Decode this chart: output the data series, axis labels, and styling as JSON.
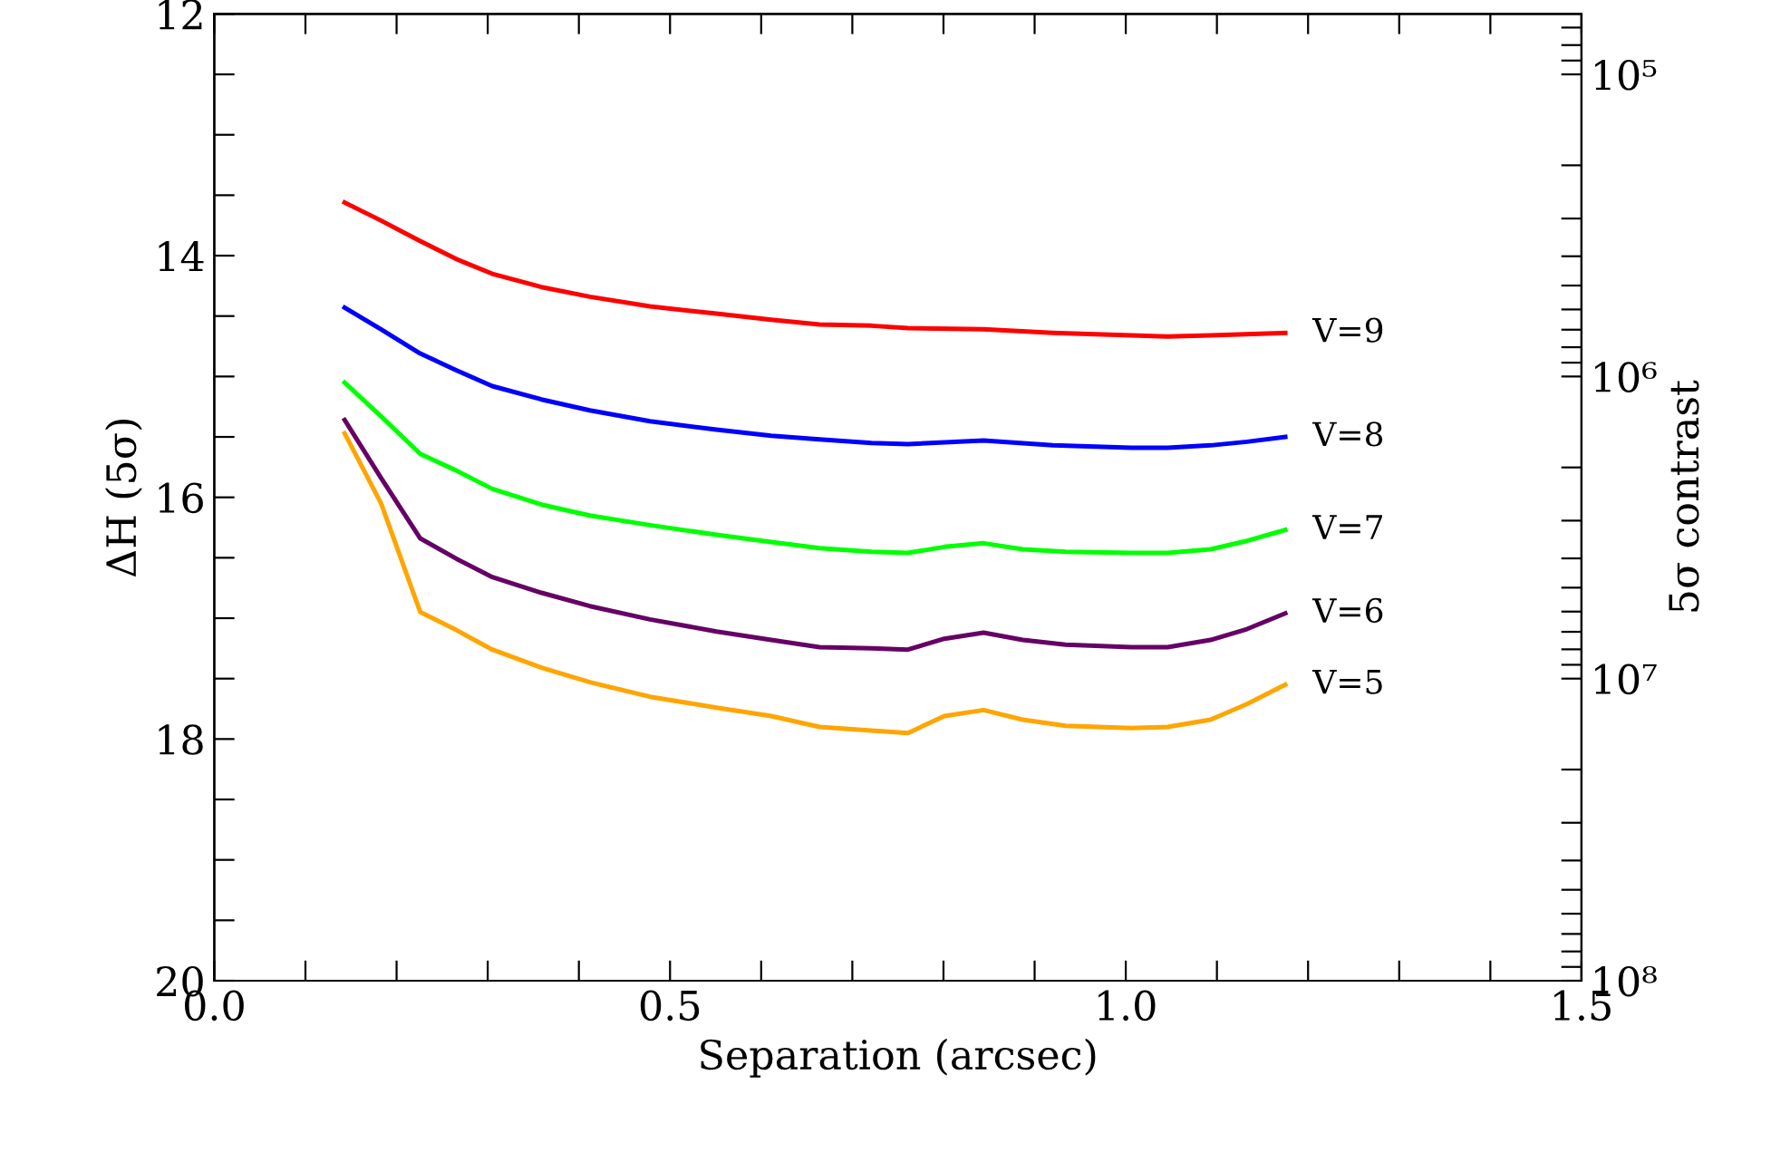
{
  "chart_data": {
    "type": "line",
    "xlabel": "Separation (arcsec)",
    "ylabel": "ΔH (5σ)",
    "y2label": "5σ contrast",
    "xlim": [
      0,
      1.5
    ],
    "ylim": [
      20,
      12
    ],
    "y2lim": [
      100000000,
      63095.7
    ],
    "xticks": [
      {
        "value": 0,
        "label": "0.0"
      },
      {
        "value": 0.1,
        "label": null
      },
      {
        "value": 0.2,
        "label": null
      },
      {
        "value": 0.3,
        "label": null
      },
      {
        "value": 0.4,
        "label": null
      },
      {
        "value": 0.5,
        "label": "0.5"
      },
      {
        "value": 0.6,
        "label": null
      },
      {
        "value": 0.7,
        "label": null
      },
      {
        "value": 0.8,
        "label": null
      },
      {
        "value": 0.9,
        "label": null
      },
      {
        "value": 1.0,
        "label": "1.0"
      },
      {
        "value": 1.1,
        "label": null
      },
      {
        "value": 1.2,
        "label": null
      },
      {
        "value": 1.3,
        "label": null
      },
      {
        "value": 1.4,
        "label": null
      },
      {
        "value": 1.5,
        "label": "1.5"
      }
    ],
    "yticks": [
      12,
      {
        "value": 12.5,
        "label": null
      },
      {
        "value": 13,
        "label": null
      },
      {
        "value": 13.5,
        "label": null
      },
      14,
      {
        "value": 14.5,
        "label": null
      },
      {
        "value": 15,
        "label": null
      },
      {
        "value": 15.5,
        "label": null
      },
      16,
      {
        "value": 16.5,
        "label": null
      },
      {
        "value": 17,
        "label": null
      },
      {
        "value": 17.5,
        "label": null
      },
      18,
      {
        "value": 18.5,
        "label": null
      },
      {
        "value": 19,
        "label": null
      },
      {
        "value": 19.5,
        "label": null
      },
      20
    ],
    "y2ticks": [
      {
        "value": 70000,
        "label": null
      },
      {
        "value": 80000,
        "label": null
      },
      {
        "value": 90000,
        "label": null
      },
      {
        "value": 100000,
        "label": "10⁵"
      },
      {
        "value": 200000,
        "label": null
      },
      {
        "value": 300000,
        "label": null
      },
      {
        "value": 400000,
        "label": null
      },
      {
        "value": 500000,
        "label": null
      },
      {
        "value": 600000,
        "label": null
      },
      {
        "value": 700000,
        "label": null
      },
      {
        "value": 800000,
        "label": null
      },
      {
        "value": 900000,
        "label": null
      },
      {
        "value": 1000000,
        "label": "10⁶"
      },
      {
        "value": 2000000,
        "label": null
      },
      {
        "value": 3000000,
        "label": null
      },
      {
        "value": 4000000,
        "label": null
      },
      {
        "value": 5000000,
        "label": null
      },
      {
        "value": 6000000,
        "label": null
      },
      {
        "value": 7000000,
        "label": null
      },
      {
        "value": 8000000,
        "label": null
      },
      {
        "value": 9000000,
        "label": null
      },
      {
        "value": 10000000,
        "label": "10⁷"
      },
      {
        "value": 20000000,
        "label": null
      },
      {
        "value": 30000000,
        "label": null
      },
      {
        "value": 40000000,
        "label": null
      },
      {
        "value": 50000000,
        "label": null
      },
      {
        "value": 60000000,
        "label": null
      },
      {
        "value": 70000000,
        "label": null
      },
      {
        "value": 80000000,
        "label": null
      },
      {
        "value": 90000000,
        "label": null
      },
      {
        "value": 100000000,
        "label": "10⁸"
      }
    ],
    "log": "y2",
    "grid": false,
    "legend": false,
    "marker": "none",
    "line_style": "solid",
    "series": [
      {
        "name": "V=9",
        "color": "#ff0000",
        "x": [
          0.143,
          0.183,
          0.226,
          0.266,
          0.305,
          0.359,
          0.412,
          0.478,
          0.551,
          0.611,
          0.664,
          0.721,
          0.761,
          0.844,
          0.92,
          1.006,
          1.046,
          1.093,
          1.175
        ],
        "values": [
          13.56,
          13.71,
          13.88,
          14.03,
          14.15,
          14.26,
          14.34,
          14.42,
          14.48,
          14.53,
          14.57,
          14.58,
          14.6,
          14.61,
          14.64,
          14.66,
          14.67,
          14.66,
          14.64
        ]
      },
      {
        "name": "V=8",
        "color": "#0000ff",
        "x": [
          0.143,
          0.183,
          0.226,
          0.266,
          0.305,
          0.359,
          0.412,
          0.478,
          0.551,
          0.611,
          0.664,
          0.721,
          0.761,
          0.844,
          0.92,
          1.006,
          1.046,
          1.093,
          1.133,
          1.175
        ],
        "values": [
          14.43,
          14.61,
          14.81,
          14.95,
          15.08,
          15.19,
          15.28,
          15.37,
          15.44,
          15.49,
          15.52,
          15.55,
          15.56,
          15.53,
          15.57,
          15.59,
          15.59,
          15.57,
          15.54,
          15.5
        ]
      },
      {
        "name": "V=7",
        "color": "#00ff00",
        "x": [
          0.143,
          0.183,
          0.226,
          0.266,
          0.305,
          0.359,
          0.412,
          0.478,
          0.551,
          0.611,
          0.664,
          0.721,
          0.761,
          0.801,
          0.844,
          0.887,
          0.934,
          1.006,
          1.046,
          1.093,
          1.133,
          1.175
        ],
        "values": [
          15.05,
          15.33,
          15.64,
          15.78,
          15.93,
          16.06,
          16.15,
          16.23,
          16.31,
          16.37,
          16.42,
          16.45,
          16.46,
          16.41,
          16.38,
          16.43,
          16.45,
          16.46,
          16.46,
          16.43,
          16.36,
          16.27
        ]
      },
      {
        "name": "V=6",
        "color": "#660066",
        "x": [
          0.143,
          0.183,
          0.226,
          0.266,
          0.305,
          0.359,
          0.412,
          0.478,
          0.551,
          0.611,
          0.664,
          0.721,
          0.761,
          0.801,
          0.844,
          0.887,
          0.934,
          1.006,
          1.046,
          1.093,
          1.133,
          1.175
        ],
        "values": [
          15.36,
          15.84,
          16.34,
          16.51,
          16.66,
          16.79,
          16.9,
          17.01,
          17.11,
          17.18,
          17.24,
          17.25,
          17.26,
          17.17,
          17.12,
          17.18,
          17.22,
          17.24,
          17.24,
          17.18,
          17.09,
          16.96
        ]
      },
      {
        "name": "V=5",
        "color": "#ffa500",
        "x": [
          0.143,
          0.183,
          0.226,
          0.266,
          0.305,
          0.359,
          0.412,
          0.478,
          0.551,
          0.611,
          0.664,
          0.721,
          0.761,
          0.801,
          0.844,
          0.887,
          0.934,
          1.006,
          1.046,
          1.093,
          1.133,
          1.175
        ],
        "values": [
          15.47,
          16.05,
          16.95,
          17.1,
          17.26,
          17.41,
          17.53,
          17.65,
          17.74,
          17.81,
          17.9,
          17.93,
          17.95,
          17.81,
          17.76,
          17.84,
          17.89,
          17.91,
          17.9,
          17.84,
          17.71,
          17.55
        ]
      }
    ]
  }
}
